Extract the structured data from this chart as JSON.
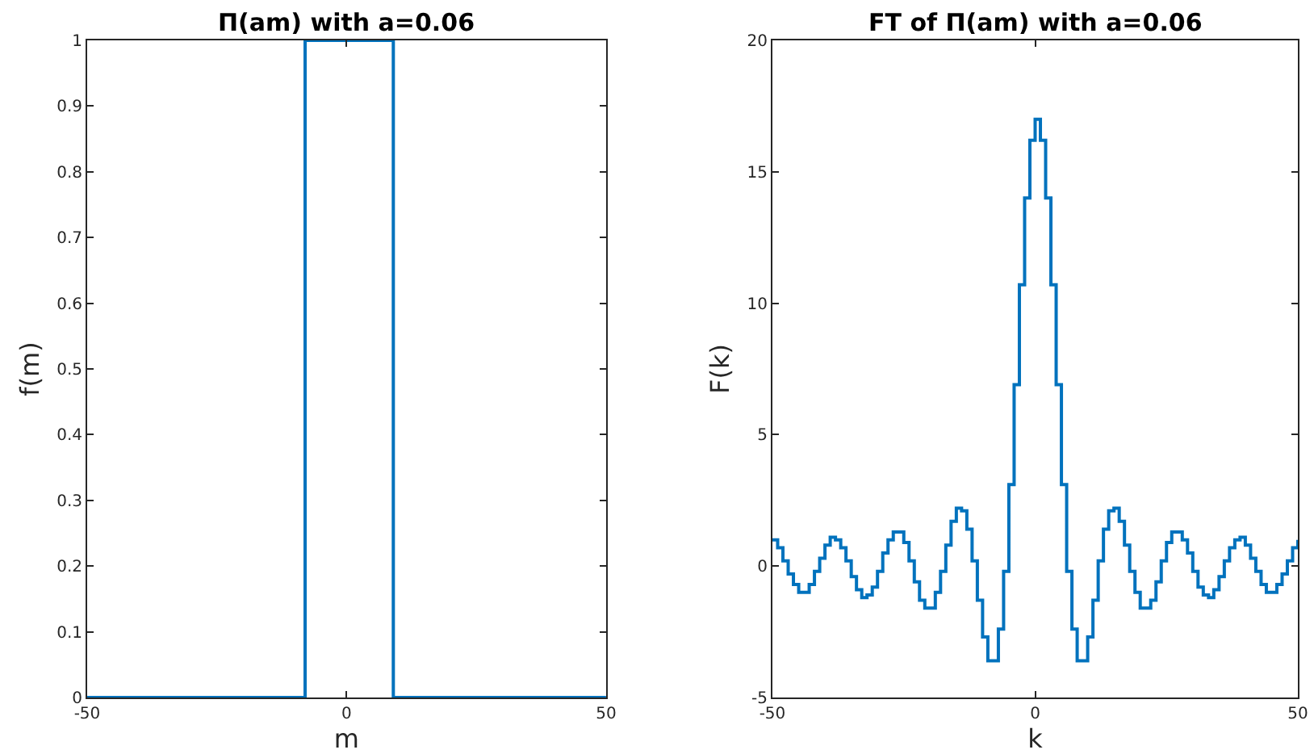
{
  "chart_data": [
    {
      "type": "step",
      "title": "Π(am) with a=0.06",
      "xlabel": "m",
      "ylabel": "f(m)",
      "series": [
        {
          "color": "#0072bd",
          "x": [
            -50,
            -8,
            9,
            50
          ],
          "values": [
            0,
            1,
            0,
            0
          ]
        }
      ],
      "xlim": [
        -50,
        50
      ],
      "xticks": [
        -50,
        0,
        50
      ],
      "ylim": [
        0,
        1
      ],
      "yticks": [
        0,
        0.1,
        0.2,
        0.3,
        0.4,
        0.5,
        0.6,
        0.7,
        0.8,
        0.9,
        1
      ],
      "marker": "none",
      "line_style": "solid"
    },
    {
      "type": "step",
      "title": "FT of Π(am) with a=0.06",
      "xlabel": "k",
      "ylabel": "F(k)",
      "series": [
        {
          "color": "#0072bd",
          "x": [
            -50,
            -49,
            -48,
            -47,
            -46,
            -45,
            -44,
            -43,
            -42,
            -41,
            -40,
            -39,
            -38,
            -37,
            -36,
            -35,
            -34,
            -33,
            -32,
            -31,
            -30,
            -29,
            -28,
            -27,
            -26,
            -25,
            -24,
            -23,
            -22,
            -21,
            -20,
            -19,
            -18,
            -17,
            -16,
            -15,
            -14,
            -13,
            -12,
            -11,
            -10,
            -9,
            -8,
            -7,
            -6,
            -5,
            -4,
            -3,
            -2,
            -1,
            0,
            1,
            2,
            3,
            4,
            5,
            6,
            7,
            8,
            9,
            10,
            11,
            12,
            13,
            14,
            15,
            16,
            17,
            18,
            19,
            20,
            21,
            22,
            23,
            24,
            25,
            26,
            27,
            28,
            29,
            30,
            31,
            32,
            33,
            34,
            35,
            36,
            37,
            38,
            39,
            40,
            41,
            42,
            43,
            44,
            45,
            46,
            47,
            48,
            49,
            50
          ],
          "values": [
            1.0,
            0.7,
            0.2,
            -0.3,
            -0.7,
            -1.0,
            -1.0,
            -0.7,
            -0.2,
            0.3,
            0.8,
            1.1,
            1.0,
            0.7,
            0.2,
            -0.4,
            -0.9,
            -1.2,
            -1.1,
            -0.8,
            -0.2,
            0.5,
            1.0,
            1.3,
            1.3,
            0.9,
            0.2,
            -0.6,
            -1.3,
            -1.6,
            -1.6,
            -1.0,
            -0.2,
            0.8,
            1.7,
            2.2,
            2.1,
            1.4,
            0.2,
            -1.3,
            -2.7,
            -3.6,
            -3.6,
            -2.4,
            -0.2,
            3.1,
            6.9,
            10.7,
            14.0,
            16.2,
            17.0,
            16.2,
            14.0,
            10.7,
            6.9,
            3.1,
            -0.2,
            -2.4,
            -3.6,
            -3.6,
            -2.7,
            -1.3,
            0.2,
            1.4,
            2.1,
            2.2,
            1.7,
            0.8,
            -0.2,
            -1.0,
            -1.6,
            -1.6,
            -1.3,
            -0.6,
            0.2,
            0.9,
            1.3,
            1.3,
            1.0,
            0.5,
            -0.2,
            -0.8,
            -1.1,
            -1.2,
            -0.9,
            -0.4,
            0.2,
            0.7,
            1.0,
            1.1,
            0.8,
            0.3,
            -0.2,
            -0.7,
            -1.0,
            -1.0,
            -0.7,
            -0.3,
            0.2,
            0.7,
            1.0
          ]
        }
      ],
      "xlim": [
        -50,
        50
      ],
      "xticks": [
        -50,
        0,
        50
      ],
      "ylim": [
        -5,
        20
      ],
      "yticks": [
        -5,
        0,
        5,
        10,
        15,
        20
      ],
      "marker": "none",
      "line_style": "solid"
    }
  ]
}
